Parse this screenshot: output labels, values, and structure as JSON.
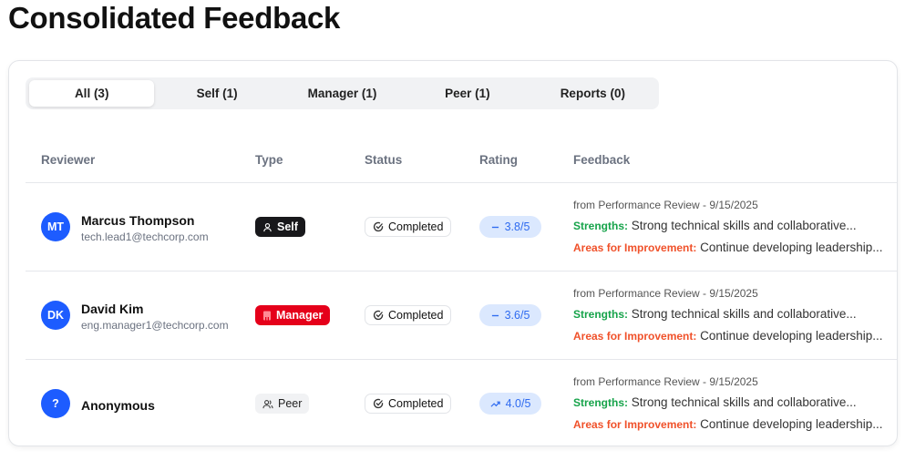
{
  "page_title": "Consolidated Feedback",
  "tabs": [
    {
      "label": "All (3)",
      "active": true
    },
    {
      "label": "Self (1)"
    },
    {
      "label": "Manager (1)"
    },
    {
      "label": "Peer (1)"
    },
    {
      "label": "Reports (0)"
    }
  ],
  "columns": [
    "Reviewer",
    "Type",
    "Status",
    "Rating",
    "Feedback"
  ],
  "rows": [
    {
      "initials": "MT",
      "name": "Marcus Thompson",
      "email": "tech.lead1@techcorp.com",
      "type": "Self",
      "type_icon": "user-icon",
      "status": "Completed",
      "rating": "3.8/5",
      "trend_icon": "minus-icon",
      "source": "from Performance Review - 9/15/2025",
      "strengths_label": "Strengths:",
      "strengths": "Strong technical skills and collaborative...",
      "improve_label": "Areas for Improvement:",
      "improve": "Continue developing leadership..."
    },
    {
      "initials": "DK",
      "name": "David Kim",
      "email": "eng.manager1@techcorp.com",
      "type": "Manager",
      "type_icon": "building-icon",
      "status": "Completed",
      "rating": "3.6/5",
      "trend_icon": "minus-icon",
      "source": "from Performance Review - 9/15/2025",
      "strengths_label": "Strengths:",
      "strengths": "Strong technical skills and collaborative...",
      "improve_label": "Areas for Improvement:",
      "improve": "Continue developing leadership..."
    },
    {
      "initials": "?",
      "name": "Anonymous",
      "type": "Peer",
      "type_icon": "users-icon",
      "status": "Completed",
      "rating": "4.0/5",
      "trend_icon": "trending-up-icon",
      "source": "from Performance Review - 9/15/2025",
      "strengths_label": "Strengths:",
      "strengths": "Strong technical skills and collaborative...",
      "improve_label": "Areas for Improvement:",
      "improve": "Continue developing leadership..."
    }
  ],
  "colors": {
    "accent": "#1d5cff",
    "manager": "#e5001a",
    "strengths": "#16a34a",
    "improve": "#f0512a",
    "rating_bg": "#dbe8fe"
  }
}
